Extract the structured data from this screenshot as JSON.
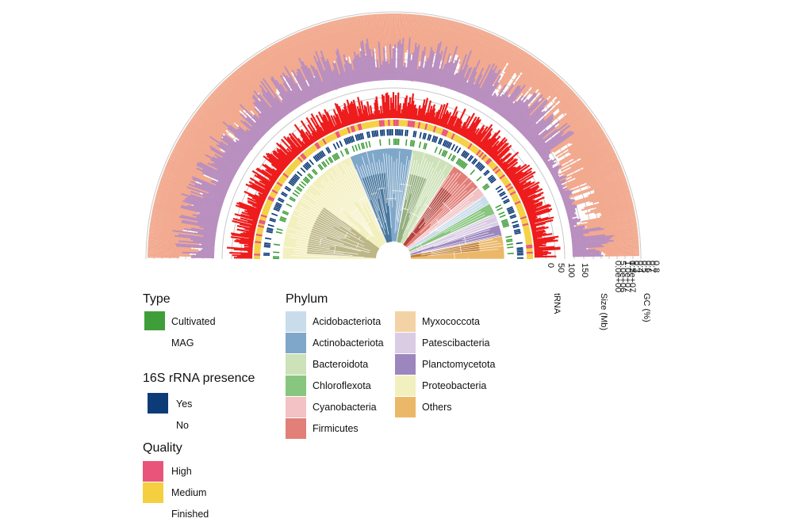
{
  "chart_data": {
    "type": "circular-phylogeny",
    "rings": [
      {
        "name": "GC (%)",
        "ticks": [
          "0.8",
          "0.7",
          "0.6",
          "0.5",
          "0.4",
          "0.3",
          "0.2"
        ],
        "color": "#F2A98E"
      },
      {
        "name": "Size (Mb)",
        "ticks": [
          "1.5e+07",
          "1.0e+07",
          "5.0e+06",
          "0.0e+00"
        ],
        "color": "#B98FC0"
      },
      {
        "name": "tRNA",
        "ticks": [
          "150",
          "100",
          "50",
          "0"
        ],
        "color": "#EE1C1C"
      }
    ],
    "clades": [
      {
        "phylum": "Proteobacteria",
        "start": 180,
        "end": 113,
        "color": "#F3F0C0"
      },
      {
        "phylum": "Actinobacteriota",
        "start": 113,
        "end": 80,
        "color": "#7FA7C9"
      },
      {
        "phylum": "Bacteroidota",
        "start": 80,
        "end": 57,
        "color": "#CDE2B8"
      },
      {
        "phylum": "Firmicutes",
        "start": 57,
        "end": 40,
        "color": "#E17F78"
      },
      {
        "phylum": "Cyanobacteria",
        "start": 40,
        "end": 35,
        "color": "#F2C2C5"
      },
      {
        "phylum": "Acidobacteriota",
        "start": 35,
        "end": 30,
        "color": "#C9DCEB"
      },
      {
        "phylum": "Chloroflexota",
        "start": 30,
        "end": 24,
        "color": "#88C57E"
      },
      {
        "phylum": "Patescibacteria",
        "start": 24,
        "end": 18,
        "color": "#D9CCE3"
      },
      {
        "phylum": "Planctomycetota",
        "start": 18,
        "end": 12,
        "color": "#9D86BE"
      },
      {
        "phylum": "Others",
        "start": 12,
        "end": 0,
        "color": "#EBB86A"
      }
    ]
  },
  "axes": {
    "gc": {
      "title": "GC (%)",
      "ticks": [
        "0.8",
        "0.7",
        "0.6",
        "0.5",
        "0.4",
        "0.3",
        "0.2"
      ]
    },
    "size": {
      "title": "Size (Mb)",
      "ticks": [
        "1.5e+07",
        "1.0e+07",
        "5.0e+06",
        "0.0e+00"
      ]
    },
    "trna": {
      "title": "tRNA",
      "ticks": [
        "150",
        "100",
        "50",
        "0"
      ]
    }
  },
  "legends": {
    "type": {
      "title": "Type",
      "items": [
        {
          "label": "Cultivated",
          "color": "#3F9E3A"
        },
        {
          "label": "MAG",
          "color": "none"
        }
      ]
    },
    "rrna": {
      "title": "16S rRNA presence",
      "items": [
        {
          "label": "Yes",
          "color": "#0D3B78"
        },
        {
          "label": "No",
          "color": "none"
        }
      ]
    },
    "quality": {
      "title": "Quality",
      "items": [
        {
          "label": "High",
          "color": "#E9557A"
        },
        {
          "label": "Medium",
          "color": "#F4D040"
        },
        {
          "label": "Finished",
          "color": "none"
        }
      ]
    },
    "phylum": {
      "title": "Phylum",
      "col1": [
        {
          "label": "Acidobacteriota",
          "color": "#C9DCEB"
        },
        {
          "label": "Actinobacteriota",
          "color": "#7FA7C9"
        },
        {
          "label": "Bacteroidota",
          "color": "#CDE2B8"
        },
        {
          "label": "Chloroflexota",
          "color": "#88C57E"
        },
        {
          "label": "Cyanobacteria",
          "color": "#F2C2C5"
        },
        {
          "label": "Firmicutes",
          "color": "#E17F78"
        }
      ],
      "col2": [
        {
          "label": "Myxococcota",
          "color": "#F3D3A6"
        },
        {
          "label": "Patescibacteria",
          "color": "#D9CCE3"
        },
        {
          "label": "Planctomycetota",
          "color": "#9D86BE"
        },
        {
          "label": "Proteobacteria",
          "color": "#F3F0C0"
        },
        {
          "label": "Others",
          "color": "#EBB86A"
        }
      ]
    }
  }
}
